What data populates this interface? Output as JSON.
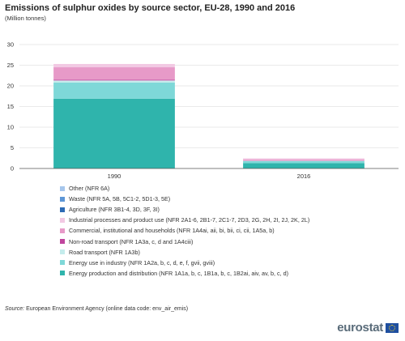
{
  "chart_data": {
    "type": "bar",
    "stacked": true,
    "title": "Emissions of sulphur oxides by source sector, EU-28, 1990 and 2016",
    "subtitle": "(Million tonnes)",
    "xlabel": "",
    "ylabel": "",
    "ylim": [
      0,
      30
    ],
    "yticks": [
      0,
      5,
      10,
      15,
      20,
      25,
      30
    ],
    "grid": true,
    "legend_position": "bottom",
    "categories": [
      "1990",
      "2016"
    ],
    "series": [
      {
        "name": "Energy production and distribution (NFR 1A1a, b, c, 1B1a, b, c, 1B2ai, aiv, av, b, c, d)",
        "color": "#2fb4ac",
        "values": [
          16.9,
          1.3
        ]
      },
      {
        "name": "Energy use in industry (NFR 1A2a, b, c, d, e, f, gvii, gviii)",
        "color": "#7ed8d8",
        "values": [
          3.9,
          0.5
        ]
      },
      {
        "name": "Road transport (NFR 1A3b)",
        "color": "#c4ecec",
        "values": [
          0.5,
          0.05
        ]
      },
      {
        "name": "Non-road transport (NFR 1A3a, c, d and 1A4ciii)",
        "color": "#c0459d",
        "values": [
          0.2,
          0.05
        ]
      },
      {
        "name": "Commercial, institutional and households (NFR 1A4ai, aii, bi, bii, ci, cii, 1A5a, b)",
        "color": "#e79ac8",
        "values": [
          3.0,
          0.3
        ]
      },
      {
        "name": "Industrial processes and product use (NFR 2A1-6, 2B1-7, 2C1-7, 2D3, 2G, 2H, 2I, 2J, 2K, 2L)",
        "color": "#f2c9e3",
        "values": [
          0.8,
          0.25
        ]
      },
      {
        "name": "Agriculture (NFR 3B1-4, 3D, 3F, 3I)",
        "color": "#2d6bb5",
        "values": [
          0.0,
          0.0
        ]
      },
      {
        "name": "Waste (NFR 5A, 5B, 5C1-2, 5D1-3, 5E)",
        "color": "#5d96d6",
        "values": [
          0.0,
          0.0
        ]
      },
      {
        "name": "Other (NFR 6A)",
        "color": "#a6c6ec",
        "values": [
          0.0,
          0.0
        ]
      }
    ]
  },
  "source": {
    "label": "Source:",
    "text": "European Environment Agency (online data code: env_air_emis)"
  },
  "logo": {
    "text": "eurostat"
  }
}
